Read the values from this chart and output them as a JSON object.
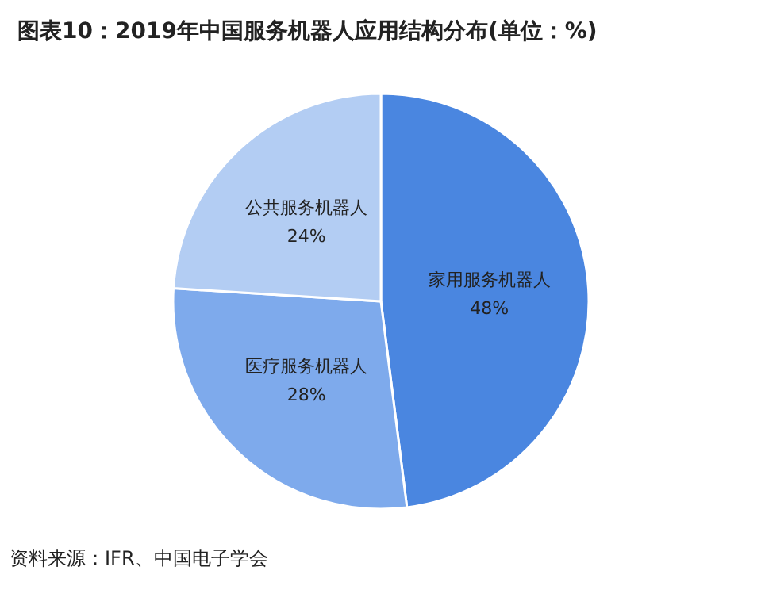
{
  "chart_data": {
    "type": "pie",
    "title": "图表10：2019年中国服务机器人应用结构分布(单位：%)",
    "categories": [
      "家用服务机器人",
      "医疗服务机器人",
      "公共服务机器人"
    ],
    "values": [
      48,
      28,
      24
    ],
    "value_labels": [
      "48%",
      "28%",
      "24%"
    ],
    "colors": [
      "#4a86e0",
      "#7eaaec",
      "#b3cdf3"
    ],
    "annotations": [
      "资料来源：IFR、中国电子学会"
    ],
    "legend": false
  }
}
